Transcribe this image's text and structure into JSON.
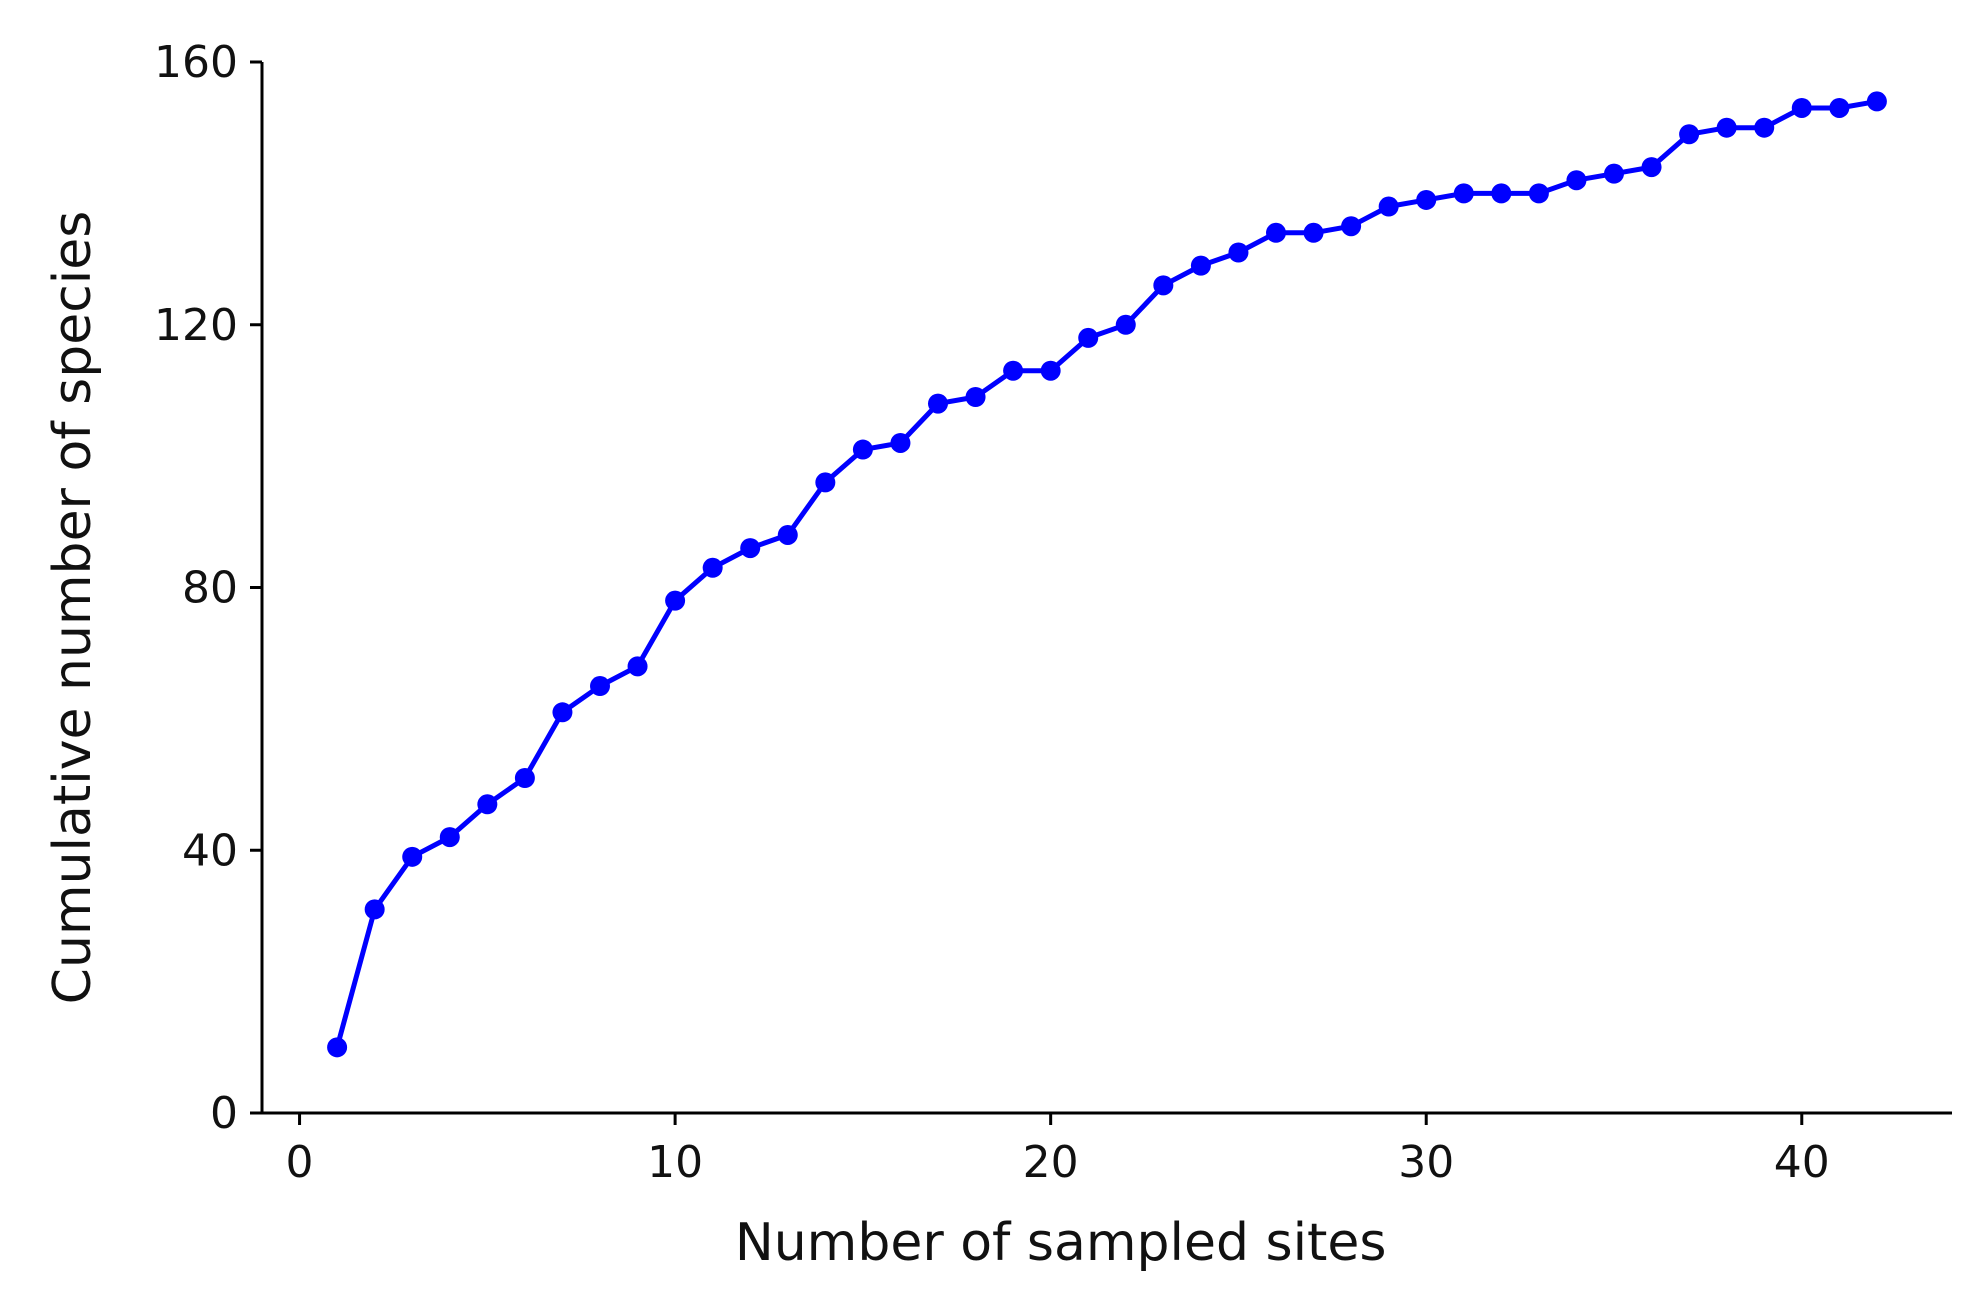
{
  "chart_data": {
    "type": "line",
    "title": "",
    "xlabel": "Number of sampled sites",
    "ylabel": "Cumulative number of species",
    "xlim": [
      -1,
      44
    ],
    "ylim": [
      0,
      160
    ],
    "xticks": [
      0,
      10,
      20,
      30,
      40
    ],
    "yticks": [
      0,
      40,
      80,
      120,
      160
    ],
    "grid": false,
    "legend": "none",
    "series_color": "#0000ff",
    "series": [
      {
        "x": [
          1,
          2,
          3,
          4,
          5,
          6,
          7,
          8,
          9,
          10,
          11,
          12,
          13,
          14,
          15,
          16,
          17,
          18,
          19,
          20,
          21,
          22,
          23,
          24,
          25,
          26,
          27,
          28,
          29,
          30,
          31,
          32,
          33,
          34,
          35,
          36,
          37,
          38,
          39,
          40,
          41,
          42
        ],
        "values": [
          10,
          31,
          39,
          42,
          47,
          51,
          61,
          65,
          68,
          78,
          83,
          86,
          88,
          96,
          101,
          102,
          108,
          109,
          113,
          113,
          118,
          120,
          126,
          129,
          131,
          134,
          134,
          135,
          138,
          139,
          140,
          140,
          140,
          142,
          143,
          144,
          149,
          150,
          150,
          153,
          153,
          154
        ]
      }
    ]
  }
}
